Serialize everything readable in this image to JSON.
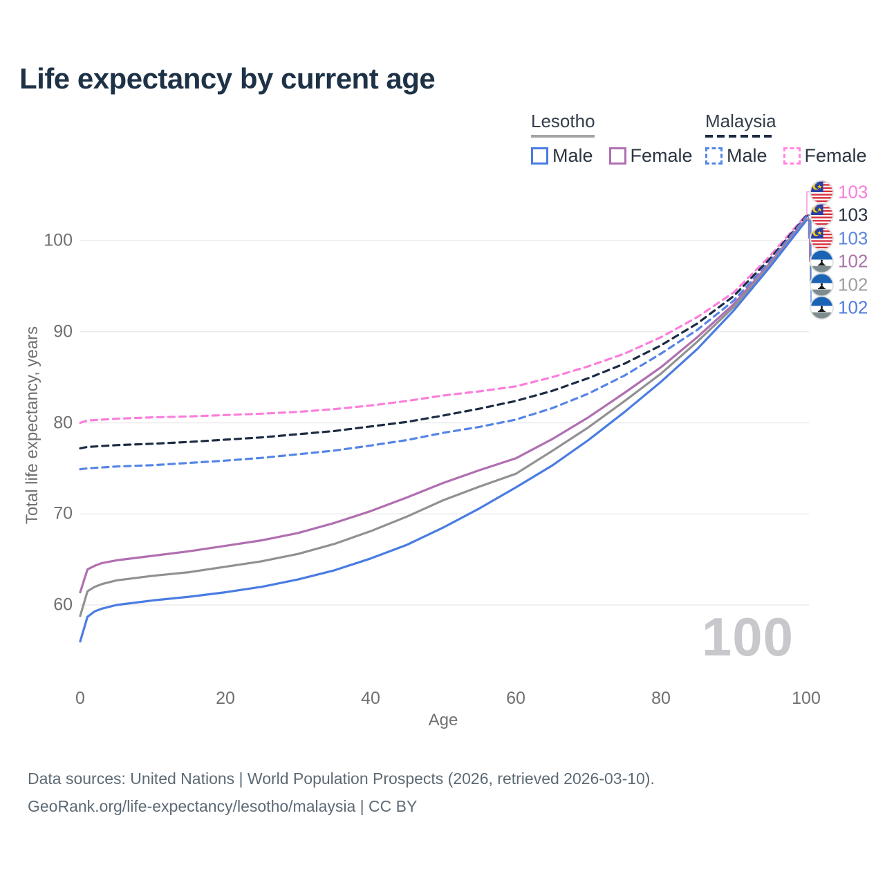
{
  "title": "Life expectancy by current age",
  "legend": {
    "groups": [
      {
        "label": "Lesotho",
        "line_style": "solid",
        "items": [
          {
            "label": "Male",
            "color": "#4a7ce2"
          },
          {
            "label": "Female",
            "color": "#b06fb0"
          }
        ]
      },
      {
        "label": "Malaysia",
        "line_style": "dashed",
        "items": [
          {
            "label": "Male",
            "color": "#5585e6"
          },
          {
            "label": "Female",
            "color": "#ff85e2"
          }
        ]
      }
    ]
  },
  "annotations": {
    "current_age": "100"
  },
  "footer": {
    "line1": "Data sources: United Nations | World Population Prospects (2026, retrieved 2026-03-10).",
    "line2": "GeoRank.org/life-expectancy/lesotho/malaysia | CC BY"
  },
  "chart_data": {
    "type": "line",
    "title": "Life expectancy by current age",
    "xlabel": "Age",
    "ylabel": "Total life expectancy, years",
    "xlim": [
      0,
      100
    ],
    "ylim": [
      55,
      105
    ],
    "x_ticks": [
      0,
      20,
      40,
      60,
      80,
      100
    ],
    "y_ticks": [
      60,
      70,
      80,
      90,
      100
    ],
    "grid": "horizontal",
    "legend_position": "top-right",
    "x": [
      0,
      1,
      2,
      3,
      5,
      10,
      15,
      20,
      25,
      30,
      35,
      40,
      45,
      50,
      55,
      60,
      65,
      70,
      75,
      80,
      85,
      90,
      95,
      100
    ],
    "series": [
      {
        "name": "Malaysia Female",
        "country": "Malaysia",
        "sex": "Female",
        "flag": "malaysia",
        "color": "#fb7edb",
        "dashed": true,
        "label_color": "#f97ed8",
        "end_label": "103",
        "values": [
          80.0,
          80.25,
          80.3,
          80.35,
          80.45,
          80.6,
          80.7,
          80.85,
          81.0,
          81.2,
          81.5,
          81.9,
          82.4,
          83.0,
          83.45,
          84.0,
          85.0,
          86.2,
          87.6,
          89.4,
          91.6,
          94.3,
          98.3,
          102.8
        ]
      },
      {
        "name": "Malaysia Both sexes",
        "country": "Malaysia",
        "sex": "Both sexes",
        "flag": "malaysia",
        "color": "#1d2c44",
        "dashed": true,
        "label_color": "#273140",
        "end_label": "103",
        "values": [
          77.2,
          77.35,
          77.4,
          77.45,
          77.55,
          77.7,
          77.9,
          78.15,
          78.4,
          78.75,
          79.1,
          79.6,
          80.1,
          80.8,
          81.55,
          82.4,
          83.5,
          84.9,
          86.5,
          88.5,
          90.9,
          93.9,
          98.0,
          102.7
        ]
      },
      {
        "name": "Malaysia Male",
        "country": "Malaysia",
        "sex": "Male",
        "flag": "malaysia",
        "color": "#5585e6",
        "dashed": true,
        "label_color": "#5b84db",
        "end_label": "103",
        "values": [
          74.9,
          75.0,
          75.05,
          75.1,
          75.2,
          75.35,
          75.6,
          75.85,
          76.15,
          76.55,
          76.95,
          77.5,
          78.1,
          78.9,
          79.55,
          80.35,
          81.6,
          83.2,
          85.2,
          87.6,
          90.2,
          93.4,
          97.7,
          102.6
        ]
      },
      {
        "name": "Lesotho Female",
        "country": "Lesotho",
        "sex": "Female",
        "flag": "lesotho",
        "color": "#b06fb0",
        "dashed": false,
        "label_color": "#ab74a8",
        "end_label": "102",
        "values": [
          61.4,
          63.9,
          64.3,
          64.6,
          64.9,
          65.4,
          65.9,
          66.5,
          67.1,
          67.9,
          69.0,
          70.3,
          71.8,
          73.4,
          74.8,
          76.1,
          78.2,
          80.6,
          83.3,
          86.1,
          89.4,
          93.0,
          97.5,
          102.4
        ]
      },
      {
        "name": "Lesotho Both sexes",
        "country": "Lesotho",
        "sex": "Both sexes",
        "flag": "lesotho",
        "color": "#919191",
        "dashed": false,
        "label_color": "#9e9e9e",
        "end_label": "102",
        "values": [
          58.8,
          61.5,
          62.0,
          62.3,
          62.7,
          63.2,
          63.6,
          64.2,
          64.8,
          65.6,
          66.7,
          68.1,
          69.7,
          71.5,
          73.0,
          74.4,
          76.9,
          79.5,
          82.4,
          85.4,
          88.9,
          92.7,
          97.3,
          102.3
        ]
      },
      {
        "name": "Lesotho Male",
        "country": "Lesotho",
        "sex": "Male",
        "flag": "lesotho",
        "color": "#4a7ce2",
        "dashed": false,
        "label_color": "#4f7ce0",
        "end_label": "102",
        "values": [
          56.0,
          58.7,
          59.3,
          59.6,
          60.0,
          60.5,
          60.9,
          61.4,
          62.0,
          62.8,
          63.8,
          65.1,
          66.6,
          68.5,
          70.6,
          72.9,
          75.3,
          78.1,
          81.2,
          84.5,
          88.1,
          92.3,
          97.1,
          102.2
        ]
      }
    ]
  }
}
